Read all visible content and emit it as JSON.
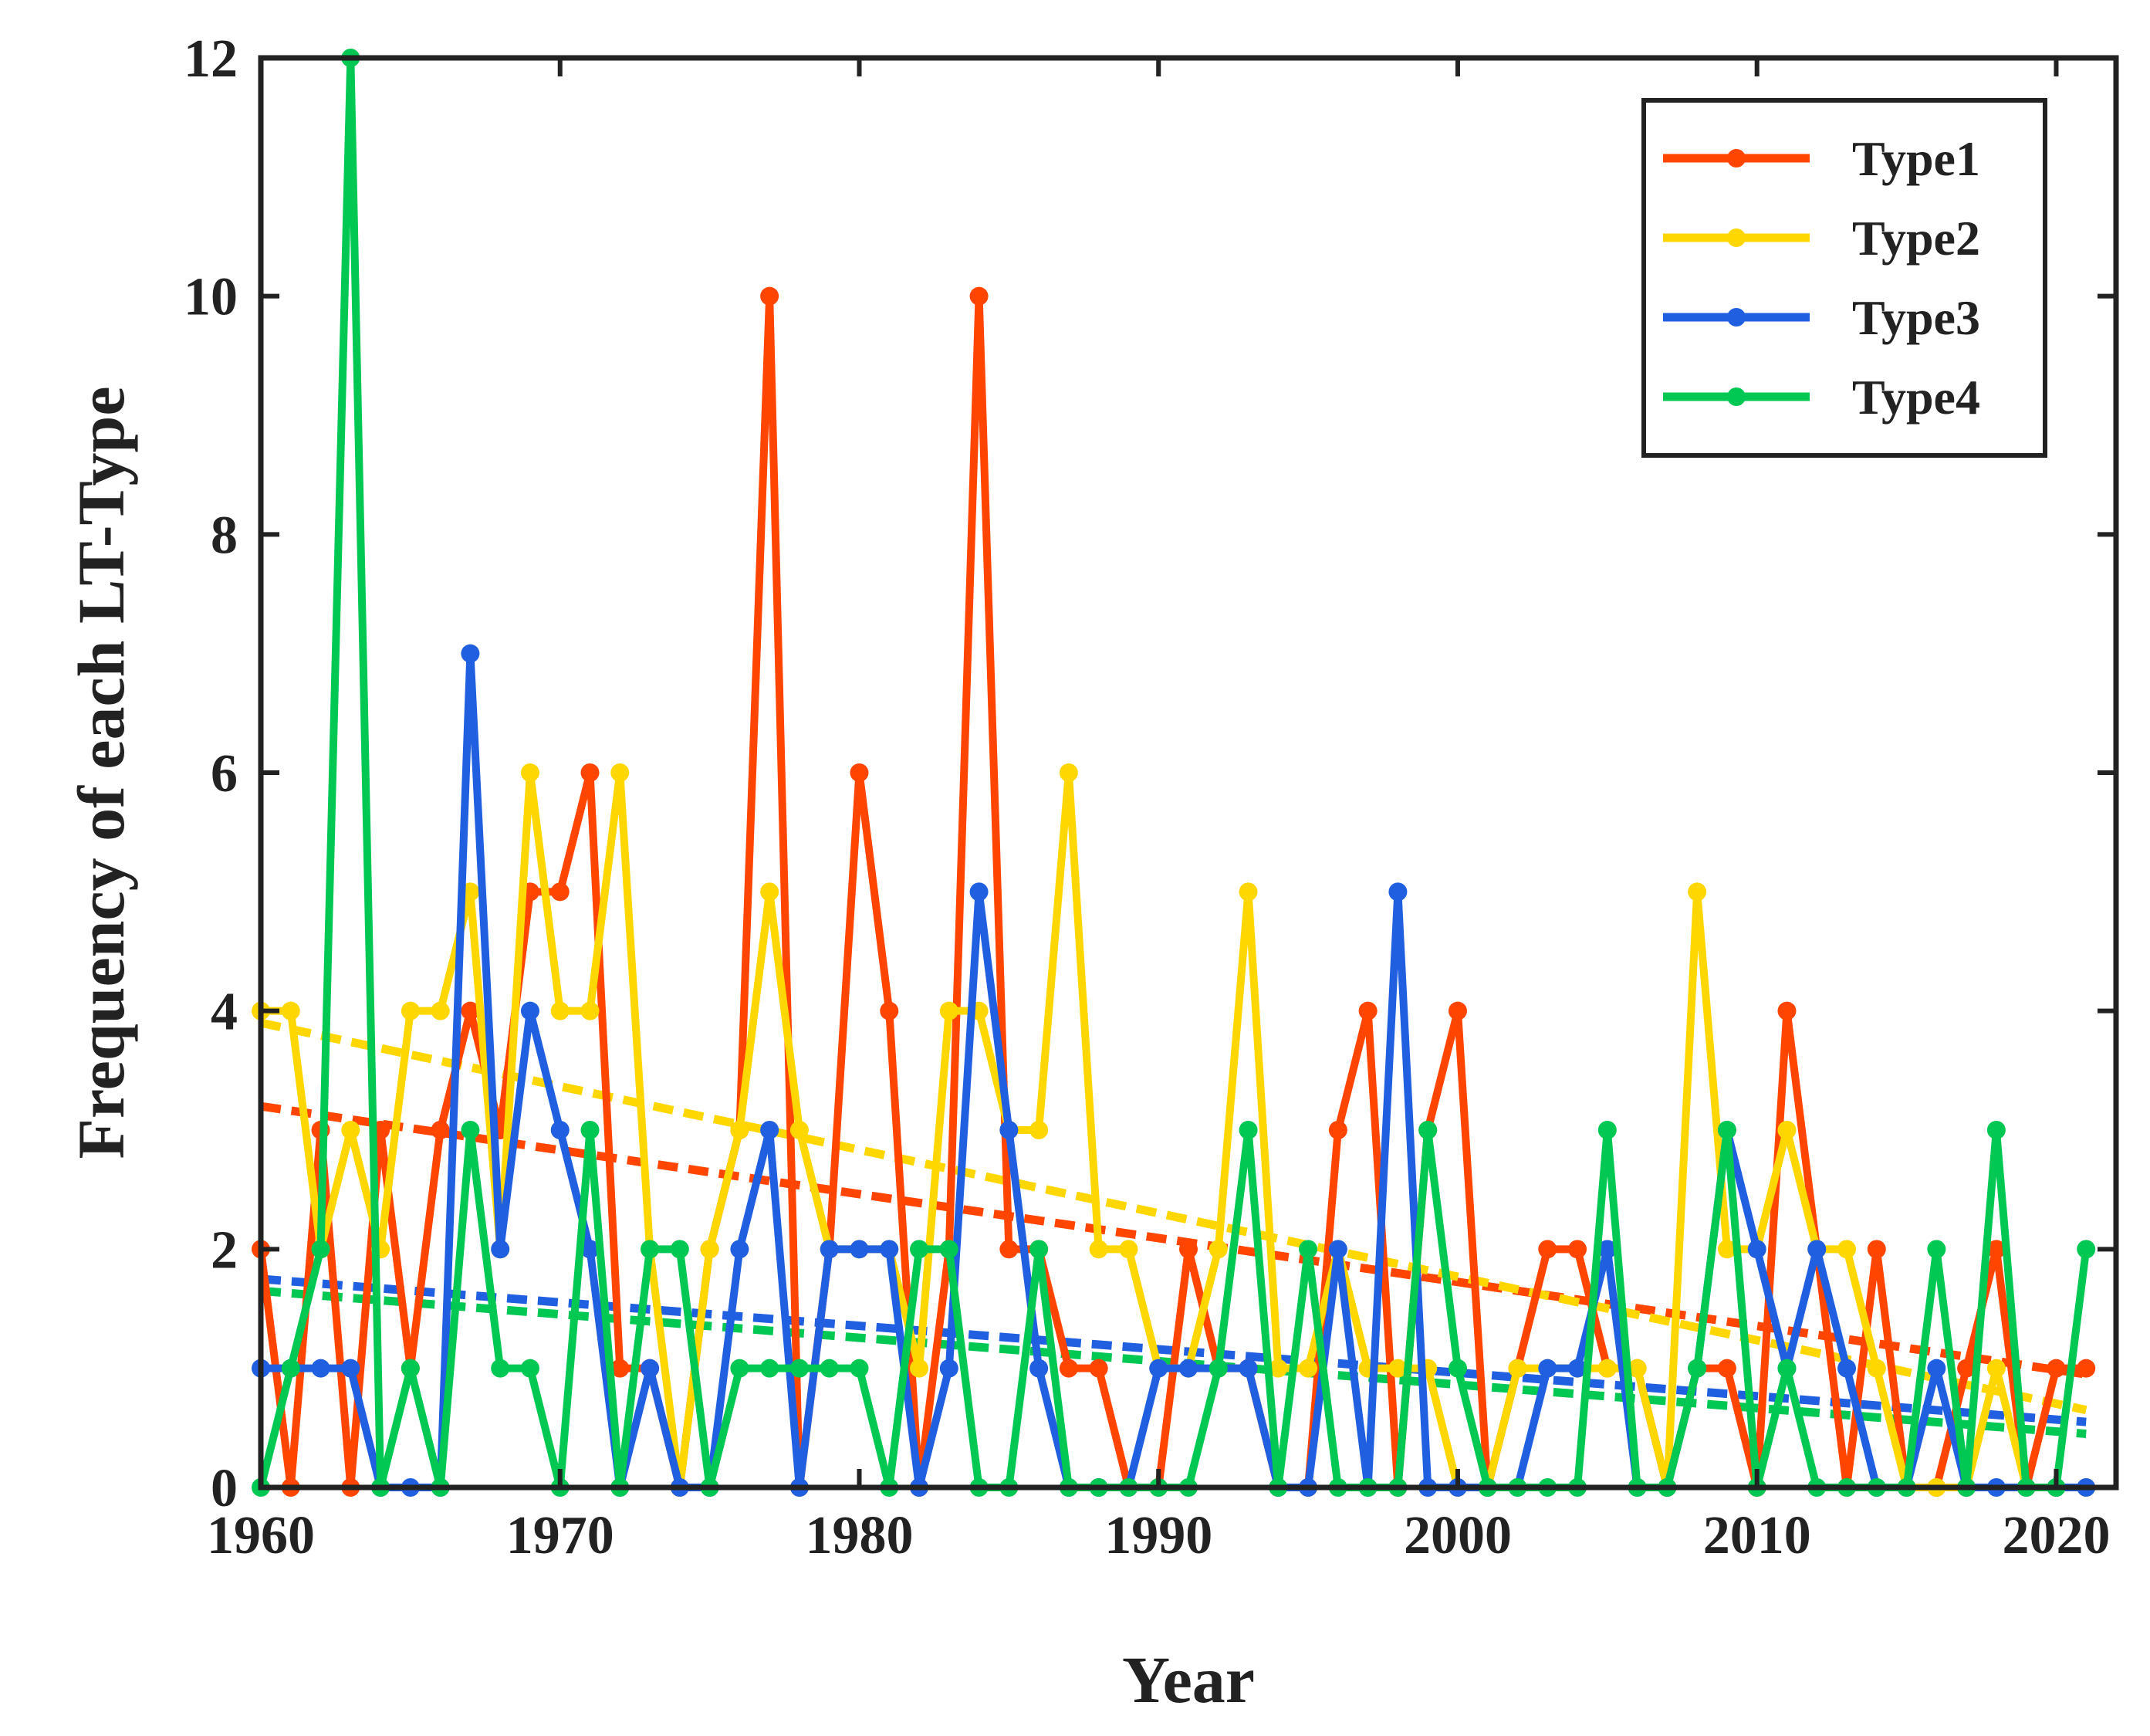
{
  "chart_data": {
    "type": "line",
    "title": "",
    "xlabel": "Year",
    "ylabel": "Frequency of each LT-Type",
    "xlim": [
      1960,
      2022
    ],
    "ylim": [
      0,
      12
    ],
    "xticks": [
      1960,
      1970,
      1980,
      1990,
      2000,
      2010,
      2020
    ],
    "yticks": [
      0,
      2,
      4,
      6,
      8,
      10,
      12
    ],
    "legend_position": "top-right",
    "x": [
      1960,
      1961,
      1962,
      1963,
      1964,
      1965,
      1966,
      1967,
      1968,
      1969,
      1970,
      1971,
      1972,
      1973,
      1974,
      1975,
      1976,
      1977,
      1978,
      1979,
      1980,
      1981,
      1982,
      1983,
      1984,
      1985,
      1986,
      1987,
      1988,
      1989,
      1990,
      1991,
      1992,
      1993,
      1994,
      1995,
      1996,
      1997,
      1998,
      1999,
      2000,
      2001,
      2002,
      2003,
      2004,
      2005,
      2006,
      2007,
      2008,
      2009,
      2010,
      2011,
      2012,
      2013,
      2014,
      2015,
      2016,
      2017,
      2018,
      2019,
      2020,
      2021
    ],
    "series": [
      {
        "name": "Type1",
        "color": "#ff4500",
        "values": [
          2,
          0,
          3,
          0,
          3,
          1,
          3,
          4,
          3,
          5,
          5,
          6,
          1,
          1,
          0,
          2,
          3,
          10,
          0,
          2,
          6,
          4,
          0,
          2,
          10,
          2,
          2,
          1,
          1,
          0,
          0,
          2,
          1,
          1,
          0,
          0,
          3,
          4,
          0,
          3,
          4,
          0,
          1,
          2,
          2,
          1,
          1,
          0,
          1,
          1,
          0,
          4,
          2,
          0,
          2,
          0,
          0,
          1,
          2,
          0,
          1,
          1
        ],
        "trend": [
          3.2,
          0.95
        ]
      },
      {
        "name": "Type2",
        "color": "#ffd700",
        "values": [
          4,
          4,
          2,
          3,
          2,
          4,
          4,
          5,
          2,
          6,
          4,
          4,
          6,
          2,
          0,
          2,
          3,
          5,
          3,
          2,
          2,
          2,
          1,
          4,
          4,
          3,
          3,
          6,
          2,
          2,
          1,
          1,
          2,
          5,
          1,
          1,
          2,
          1,
          1,
          1,
          0,
          0,
          1,
          1,
          1,
          1,
          1,
          0,
          5,
          2,
          2,
          3,
          2,
          2,
          1,
          0,
          0,
          0,
          1,
          0,
          0,
          0
        ],
        "trend": [
          3.9,
          0.65
        ]
      },
      {
        "name": "Type3",
        "color": "#1f5fe0",
        "values": [
          1,
          1,
          1,
          1,
          0,
          0,
          0,
          7,
          2,
          4,
          3,
          2,
          0,
          1,
          0,
          0,
          2,
          3,
          0,
          2,
          2,
          2,
          0,
          1,
          5,
          3,
          1,
          0,
          0,
          0,
          1,
          1,
          1,
          1,
          0,
          0,
          2,
          0,
          5,
          0,
          0,
          0,
          0,
          1,
          1,
          2,
          0,
          0,
          1,
          3,
          2,
          1,
          2,
          1,
          0,
          0,
          1,
          0,
          0,
          0,
          0,
          0
        ],
        "trend": [
          1.75,
          0.55
        ]
      },
      {
        "name": "Type4",
        "color": "#00c853",
        "values": [
          0,
          1,
          2,
          12,
          0,
          1,
          0,
          3,
          1,
          1,
          0,
          3,
          0,
          2,
          2,
          0,
          1,
          1,
          1,
          1,
          1,
          0,
          2,
          2,
          0,
          0,
          2,
          0,
          0,
          0,
          0,
          0,
          1,
          3,
          0,
          2,
          0,
          0,
          0,
          3,
          1,
          0,
          0,
          0,
          0,
          3,
          0,
          0,
          1,
          3,
          0,
          1,
          0,
          0,
          0,
          0,
          2,
          0,
          3,
          0,
          0,
          2
        ],
        "trend": [
          1.65,
          0.45
        ]
      }
    ]
  }
}
